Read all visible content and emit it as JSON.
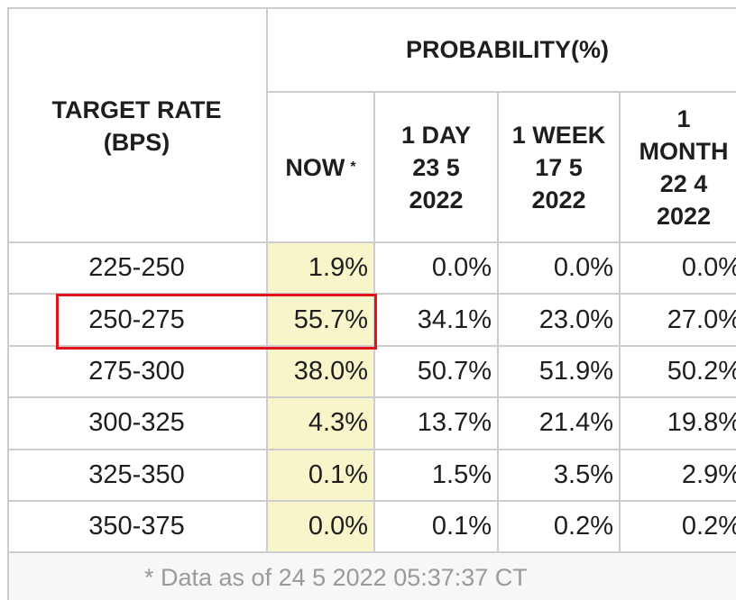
{
  "table": {
    "row_header": "TARGET RATE\n(BPS)",
    "group_header": "PROBABILITY(%)",
    "columns": [
      "NOW",
      "1 DAY\n23 5\n2022",
      "1 WEEK\n17 5\n2022",
      "1\nMONTH\n22 4\n2022"
    ],
    "now_marker": "*",
    "rows": [
      [
        "225-250",
        "1.9%",
        "0.0%",
        "0.0%",
        "0.0%"
      ],
      [
        "250-275",
        "55.7%",
        "34.1%",
        "23.0%",
        "27.0%"
      ],
      [
        "275-300",
        "38.0%",
        "50.7%",
        "51.9%",
        "50.2%"
      ],
      [
        "300-325",
        "4.3%",
        "13.7%",
        "21.4%",
        "19.8%"
      ],
      [
        "325-350",
        "0.1%",
        "1.5%",
        "3.5%",
        "2.9%"
      ],
      [
        "350-375",
        "0.0%",
        "0.1%",
        "0.2%",
        "0.2%"
      ]
    ],
    "footnote": "* Data as of 24 5 2022 05:37:37 CT"
  }
}
